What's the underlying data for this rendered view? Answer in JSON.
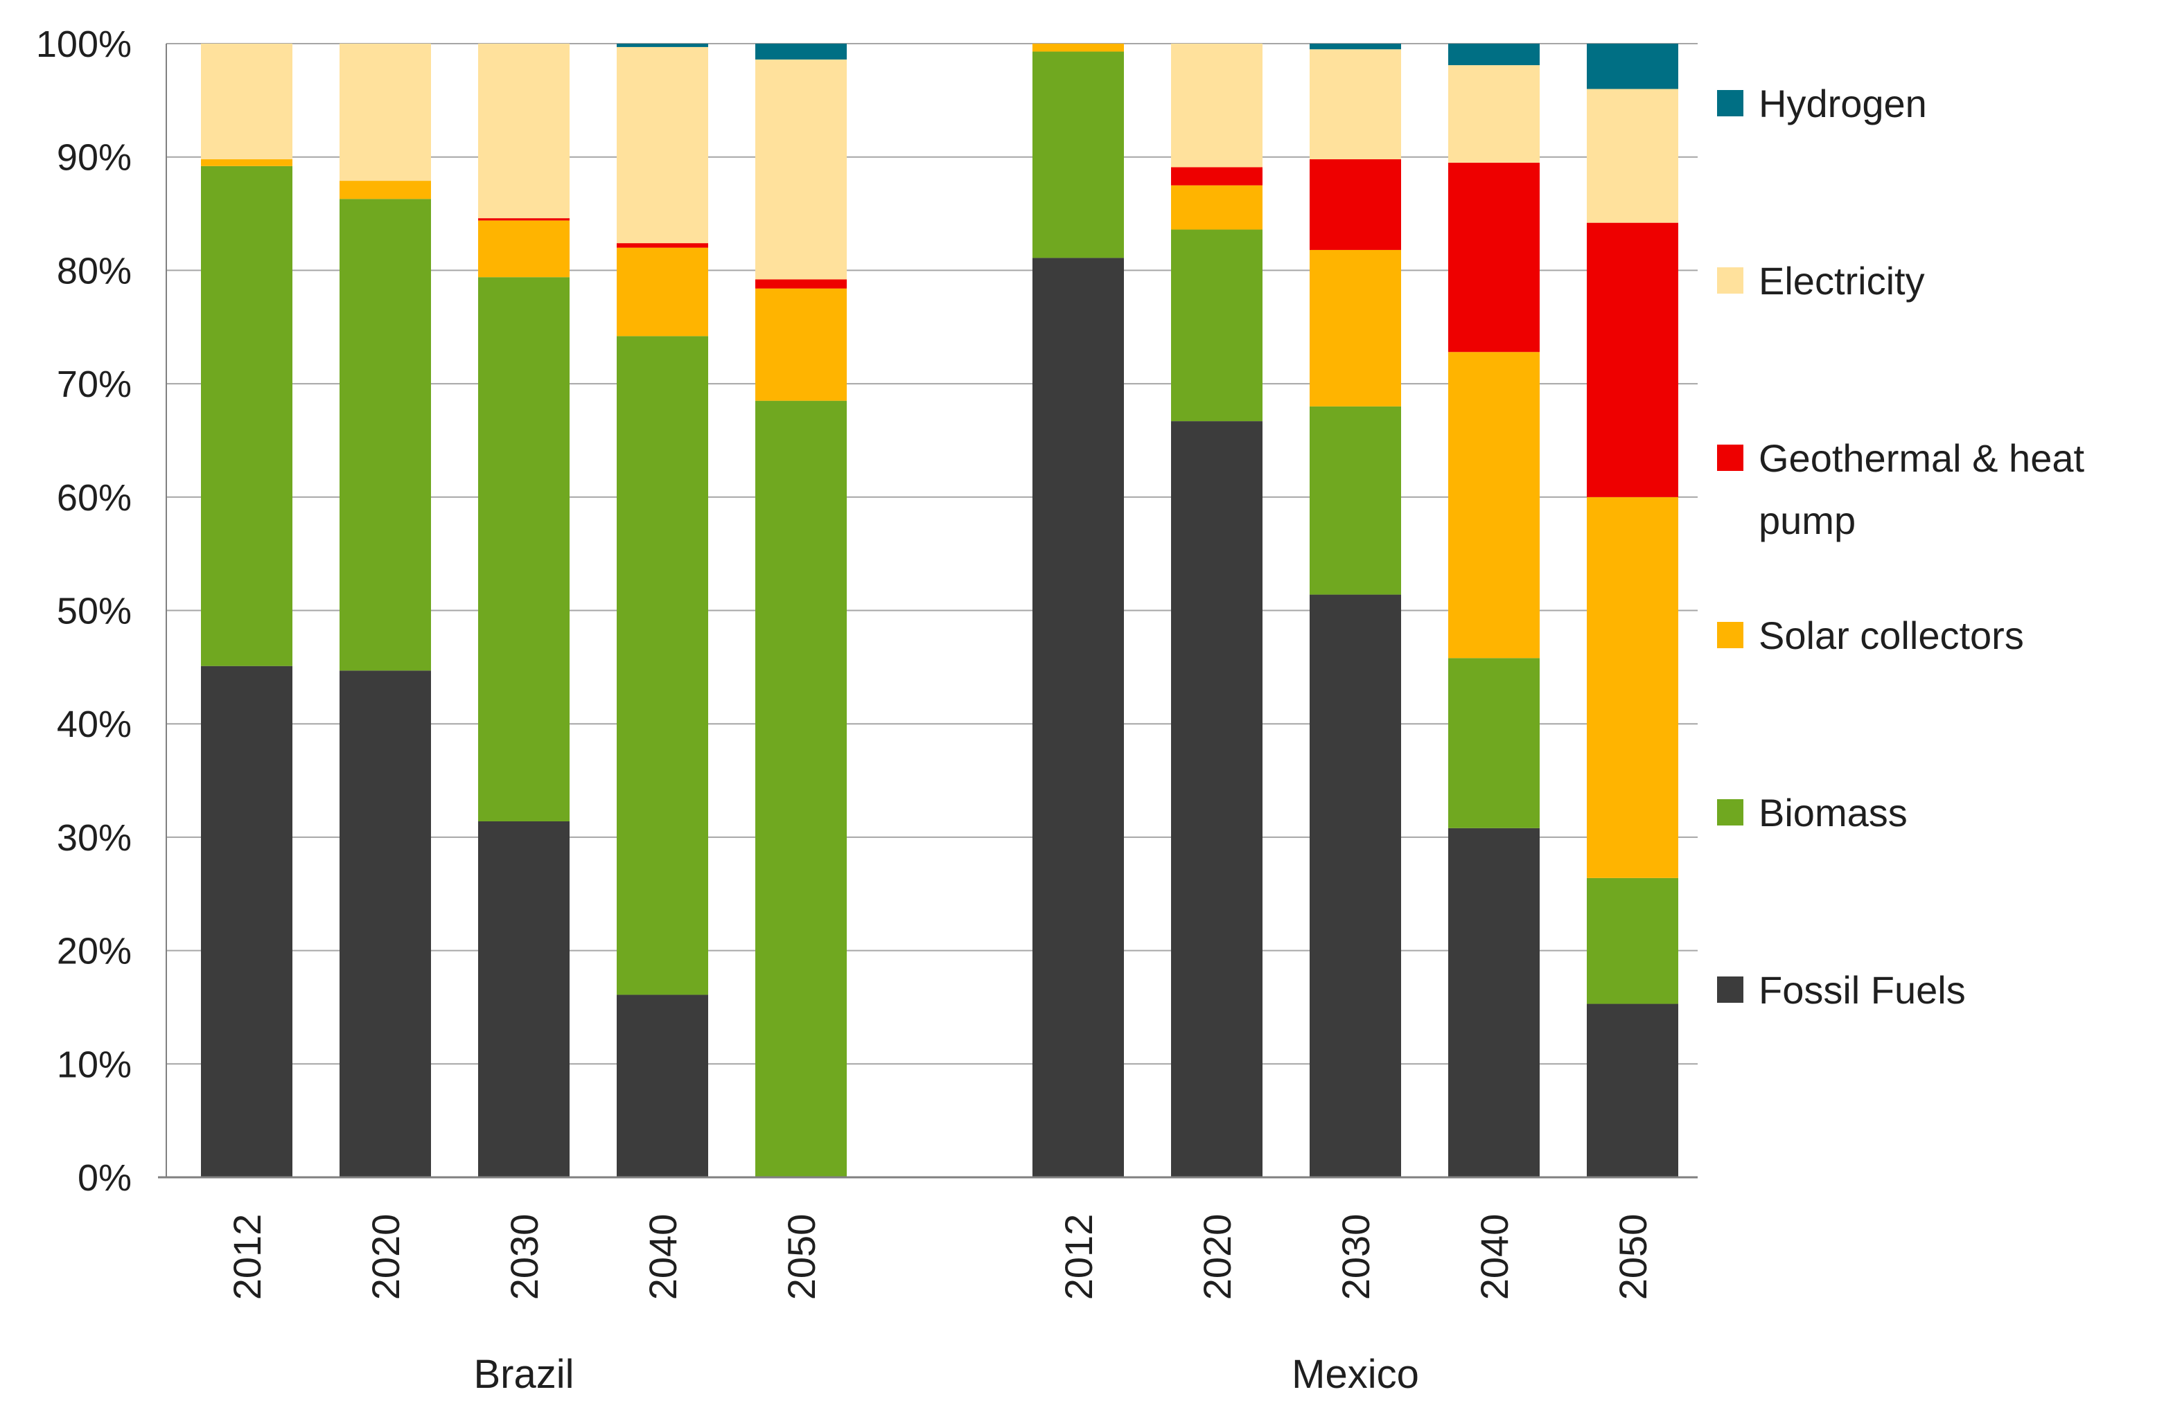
{
  "chart_data": {
    "type": "bar",
    "stacked": true,
    "title": "",
    "xlabel": "",
    "ylabel": "",
    "ylim": [
      0,
      100
    ],
    "yticks": [
      "0%",
      "10%",
      "20%",
      "30%",
      "40%",
      "50%",
      "60%",
      "70%",
      "80%",
      "90%",
      "100%"
    ],
    "groups": [
      {
        "name": "Brazil",
        "categories": [
          "2012",
          "2020",
          "2030",
          "2040",
          "2050"
        ]
      },
      {
        "name": "Mexico",
        "categories": [
          "2012",
          "2020",
          "2030",
          "2040",
          "2050"
        ]
      }
    ],
    "series": [
      {
        "name": "Fossil Fuels",
        "color": "#3c3c3c",
        "values": [
          45.1,
          44.7,
          31.4,
          16.1,
          0,
          81.1,
          66.7,
          51.4,
          30.8,
          15.3
        ]
      },
      {
        "name": "Biomass",
        "color": "#70a820",
        "values": [
          44.1,
          41.6,
          48.0,
          58.1,
          68.5,
          18.2,
          16.9,
          16.6,
          15.0,
          11.1
        ]
      },
      {
        "name": "Solar collectors",
        "color": "#ffb400",
        "values": [
          0.6,
          1.6,
          5.0,
          7.8,
          9.9,
          0.7,
          3.9,
          13.8,
          27.0,
          33.6
        ]
      },
      {
        "name": "Geothermal & heat pump",
        "color": "#ee0000",
        "values": [
          0,
          0,
          0.2,
          0.4,
          0.8,
          0,
          1.6,
          8.0,
          16.7,
          24.2
        ]
      },
      {
        "name": "Electricity",
        "color": "#ffe19c",
        "values": [
          10.2,
          12.1,
          15.4,
          17.3,
          19.4,
          0,
          10.9,
          9.7,
          8.6,
          11.8
        ]
      },
      {
        "name": "Hydrogen",
        "color": "#006f84",
        "values": [
          0,
          0,
          0,
          0.3,
          1.4,
          0,
          0,
          0.5,
          1.9,
          4.0
        ]
      }
    ],
    "legend": {
      "position": "right",
      "order": [
        "Hydrogen",
        "Electricity",
        "Geothermal & heat pump",
        "Solar collectors",
        "Biomass",
        "Fossil Fuels"
      ],
      "wrapped_labels": {
        "Geothermal & heat pump": [
          "Geothermal & heat",
          "pump"
        ]
      }
    },
    "grid": true,
    "gridline_color": "#a6a6a6",
    "axis_color": "#808080"
  }
}
